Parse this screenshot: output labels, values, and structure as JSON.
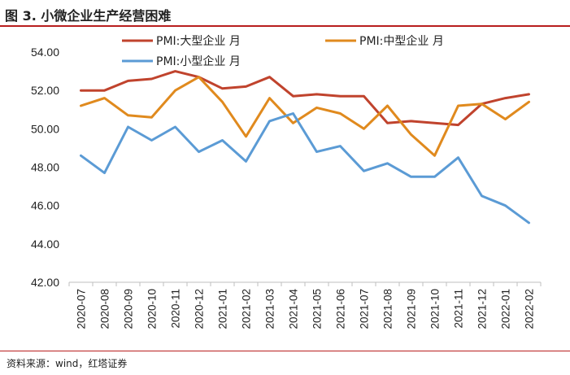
{
  "figure": {
    "title": "图 3. 小微企业生产经营困难",
    "source": "资料来源：wind，红塔证券"
  },
  "colors": {
    "large": "#c0432d",
    "medium": "#e08a1e",
    "small": "#5b9bd5",
    "accent": "#b81e1e"
  },
  "chart_data": {
    "type": "line",
    "title": "",
    "xlabel": "",
    "ylabel": "",
    "ylim": [
      42,
      54
    ],
    "ytick_values": [
      42,
      44,
      46,
      48,
      50,
      52,
      54
    ],
    "ytick_labels": [
      "42.00",
      "44.00",
      "46.00",
      "48.00",
      "50.00",
      "52.00",
      "54.00"
    ],
    "grid": false,
    "legend_position": "top",
    "categories": [
      "2020-07",
      "2020-08",
      "2020-09",
      "2020-10",
      "2020-11",
      "2020-12",
      "2021-01",
      "2021-02",
      "2021-03",
      "2021-04",
      "2021-05",
      "2021-06",
      "2021-07",
      "2021-08",
      "2021-09",
      "2021-10",
      "2021-11",
      "2021-12",
      "2022-01",
      "2022-02"
    ],
    "series": [
      {
        "name": "PMI:大型企业 月",
        "color_key": "large",
        "values": [
          52.0,
          52.0,
          52.5,
          52.6,
          53.0,
          52.7,
          52.1,
          52.2,
          52.7,
          51.7,
          51.8,
          51.7,
          51.7,
          50.3,
          50.4,
          50.3,
          50.2,
          51.3,
          51.6,
          51.8
        ]
      },
      {
        "name": "PMI:中型企业 月",
        "color_key": "medium",
        "values": [
          51.2,
          51.6,
          50.7,
          50.6,
          52.0,
          52.7,
          51.4,
          49.6,
          51.6,
          50.3,
          51.1,
          50.8,
          50.0,
          51.2,
          49.7,
          48.6,
          51.2,
          51.3,
          50.5,
          51.4
        ]
      },
      {
        "name": "PMI:小型企业 月",
        "color_key": "small",
        "values": [
          48.6,
          47.7,
          50.1,
          49.4,
          50.1,
          48.8,
          49.4,
          48.3,
          50.4,
          50.8,
          48.8,
          49.1,
          47.8,
          48.2,
          47.5,
          47.5,
          48.5,
          46.5,
          46.0,
          45.1
        ]
      }
    ]
  }
}
